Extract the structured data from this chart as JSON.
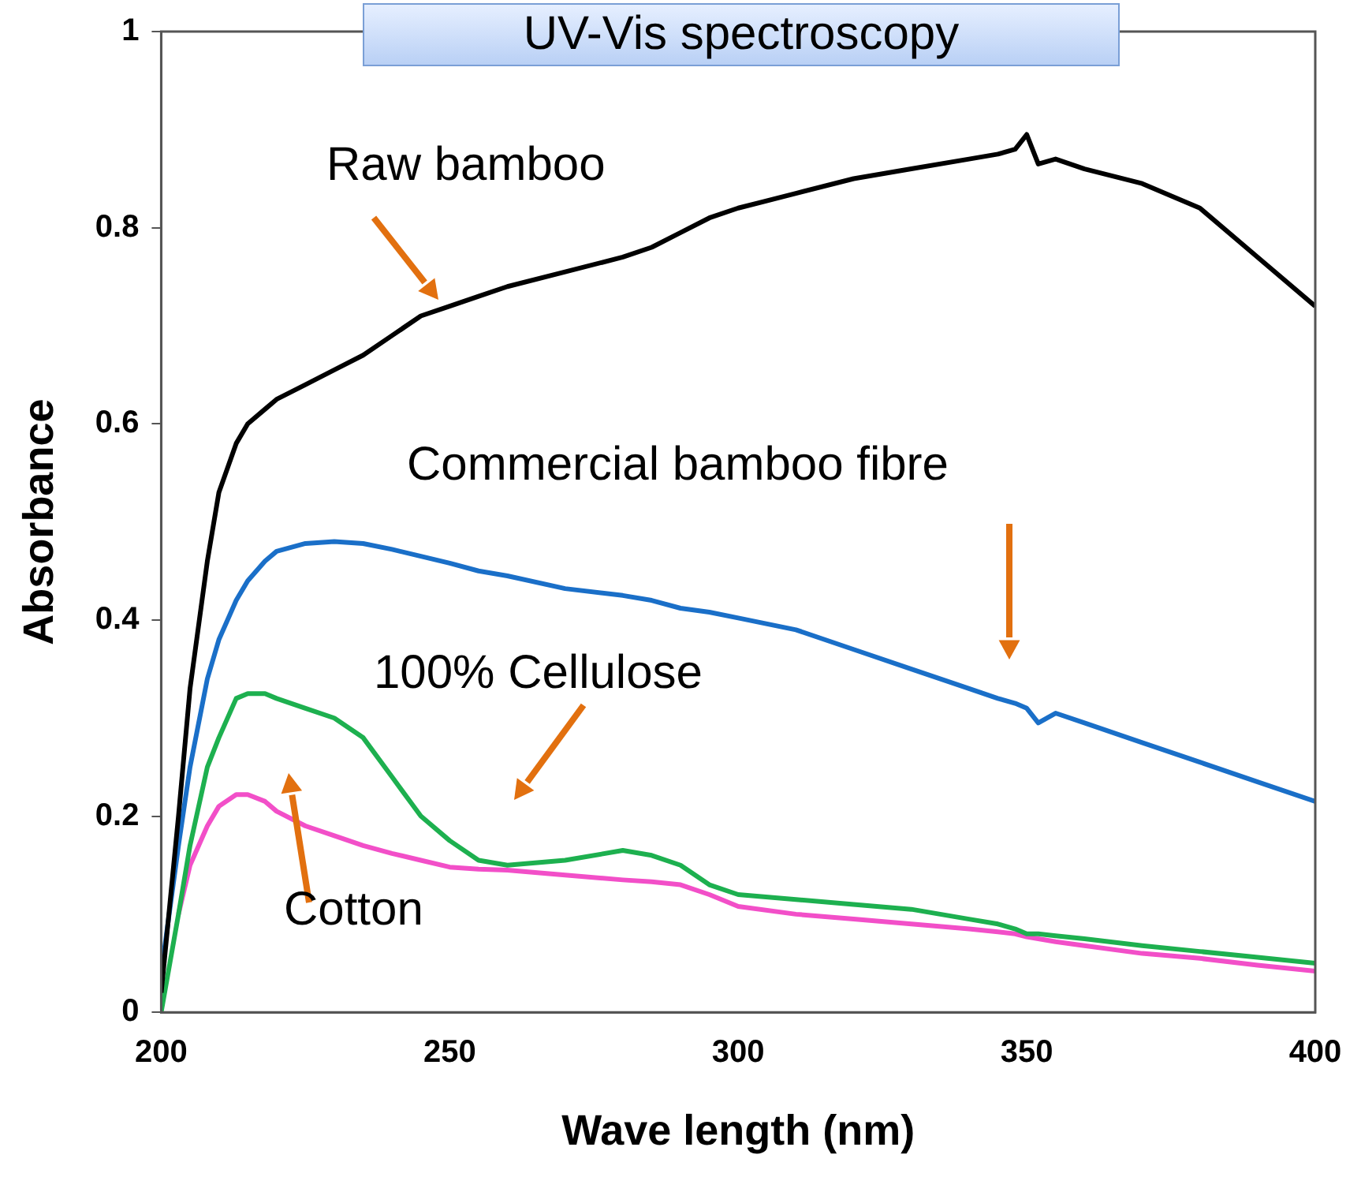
{
  "chart_data": {
    "type": "line",
    "title": "UV-Vis spectroscopy",
    "xlabel": "Wave length (nm)",
    "ylabel": "Absorbance",
    "xlim": [
      200,
      400
    ],
    "xticks": [
      200,
      250,
      300,
      350,
      400
    ],
    "ylim": [
      0,
      1
    ],
    "yticks": [
      0,
      0.2,
      0.4,
      0.6,
      0.8,
      1
    ],
    "x": [
      200,
      203,
      205,
      208,
      210,
      213,
      215,
      218,
      220,
      225,
      230,
      235,
      240,
      245,
      250,
      255,
      260,
      270,
      280,
      285,
      290,
      295,
      300,
      310,
      320,
      330,
      340,
      345,
      348,
      350,
      352,
      355,
      360,
      370,
      380,
      390,
      400
    ],
    "series": [
      {
        "name": "Raw bamboo",
        "color": "#000000",
        "values": [
          0.02,
          0.2,
          0.33,
          0.46,
          0.53,
          0.58,
          0.6,
          0.615,
          0.625,
          0.64,
          0.655,
          0.67,
          0.69,
          0.71,
          0.72,
          0.73,
          0.74,
          0.755,
          0.77,
          0.78,
          0.795,
          0.81,
          0.82,
          0.835,
          0.85,
          0.86,
          0.87,
          0.875,
          0.88,
          0.895,
          0.865,
          0.87,
          0.86,
          0.845,
          0.82,
          0.77,
          0.72
        ]
      },
      {
        "name": "Commercial bamboo fibre",
        "color": "#1a6fc8",
        "values": [
          0.04,
          0.17,
          0.25,
          0.34,
          0.38,
          0.42,
          0.44,
          0.46,
          0.47,
          0.478,
          0.48,
          0.478,
          0.472,
          0.465,
          0.458,
          0.45,
          0.445,
          0.432,
          0.425,
          0.42,
          0.412,
          0.408,
          0.402,
          0.39,
          0.37,
          0.35,
          0.33,
          0.32,
          0.315,
          0.31,
          0.295,
          0.305,
          0.295,
          0.275,
          0.255,
          0.235,
          0.215
        ]
      },
      {
        "name": "100% Cellulose",
        "color": "#1db04f",
        "values": [
          0.0,
          0.1,
          0.17,
          0.25,
          0.28,
          0.32,
          0.325,
          0.325,
          0.32,
          0.31,
          0.3,
          0.28,
          0.24,
          0.2,
          0.175,
          0.155,
          0.15,
          0.155,
          0.165,
          0.16,
          0.15,
          0.13,
          0.12,
          0.115,
          0.11,
          0.105,
          0.095,
          0.09,
          0.085,
          0.08,
          0.08,
          0.078,
          0.075,
          0.068,
          0.062,
          0.056,
          0.05
        ]
      },
      {
        "name": "Cotton",
        "color": "#f24fc8",
        "values": [
          null,
          0.1,
          0.15,
          0.19,
          0.21,
          0.222,
          0.222,
          0.215,
          0.205,
          0.19,
          0.18,
          0.17,
          0.162,
          0.155,
          0.148,
          0.146,
          0.145,
          0.14,
          0.135,
          0.133,
          0.13,
          0.12,
          0.108,
          0.1,
          0.095,
          0.09,
          0.085,
          0.082,
          0.08,
          0.077,
          0.075,
          0.072,
          0.068,
          0.06,
          0.055,
          0.048,
          0.042
        ]
      }
    ]
  }
}
